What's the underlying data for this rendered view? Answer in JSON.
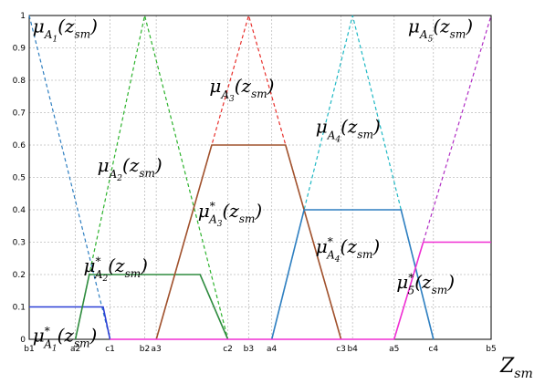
{
  "chart_data": {
    "type": "line",
    "title": "",
    "xlabel": "Z_sm",
    "ylabel": "",
    "xlim": [
      0,
      20
    ],
    "ylim": [
      0,
      1
    ],
    "grid": true,
    "x_tick_positions": [
      0,
      2,
      3.5,
      5,
      5.5,
      8.6,
      9.5,
      10.5,
      13.5,
      14,
      15.8,
      17.5,
      20
    ],
    "x_tick_labels": [
      "b1",
      "a2",
      "c1",
      "b2",
      "a3",
      "c2",
      "b3",
      "a4",
      "c3",
      "b4",
      "a5",
      "c4",
      "b5"
    ],
    "y_ticks": [
      0,
      0.1,
      0.2,
      0.3,
      0.4,
      0.5,
      0.6,
      0.7,
      0.8,
      0.9,
      1
    ],
    "y_tick_labels": [
      "0",
      "0.1",
      "0.2",
      "0.3",
      "0.4",
      "0.5",
      "0.6",
      "0.7",
      "0.8",
      "0.9",
      "1"
    ],
    "series": [
      {
        "key": "A1",
        "style": "dashed",
        "color": "#2f7fc1",
        "x": [
          0,
          3.5
        ],
        "y": [
          1,
          0
        ]
      },
      {
        "key": "A2",
        "style": "dashed",
        "color": "#2db32d",
        "x": [
          2,
          5,
          8.6
        ],
        "y": [
          0,
          1,
          0
        ]
      },
      {
        "key": "A3",
        "style": "dashed",
        "color": "#e8302c",
        "x": [
          5.5,
          9.5,
          13.5
        ],
        "y": [
          0,
          1,
          0
        ]
      },
      {
        "key": "A4",
        "style": "dashed",
        "color": "#1fb8c4",
        "x": [
          10.5,
          14,
          17.5
        ],
        "y": [
          0,
          1,
          0
        ]
      },
      {
        "key": "A5",
        "style": "dashed",
        "color": "#b12fc4",
        "x": [
          15.8,
          20
        ],
        "y": [
          0,
          1
        ]
      },
      {
        "key": "A1*",
        "style": "solid",
        "color": "#2b3fd6",
        "x": [
          0,
          3.2,
          3.5
        ],
        "y": [
          0.1,
          0.1,
          0
        ]
      },
      {
        "key": "A2*",
        "style": "solid",
        "color": "#2e8b3e",
        "x": [
          2,
          2.6,
          7.4,
          8.6
        ],
        "y": [
          0,
          0.2,
          0.2,
          0
        ]
      },
      {
        "key": "A3*",
        "style": "solid",
        "color": "#a0522d",
        "x": [
          5.5,
          7.9,
          11.1,
          13.5
        ],
        "y": [
          0,
          0.6,
          0.6,
          0
        ]
      },
      {
        "key": "A4*",
        "style": "solid",
        "color": "#2f7fc1",
        "x": [
          10.5,
          11.9,
          16.1,
          17.5
        ],
        "y": [
          0,
          0.4,
          0.4,
          0
        ]
      },
      {
        "key": "A5*",
        "style": "solid",
        "color": "#f02fd3",
        "x": [
          15.8,
          17.06,
          20
        ],
        "y": [
          0,
          0.3,
          0.3
        ]
      },
      {
        "key": "base",
        "style": "solid",
        "color": "#f02fd3",
        "x": [
          3.5,
          15.8
        ],
        "y": [
          0,
          0
        ]
      }
    ],
    "annotations": [
      {
        "key": "A1",
        "base": "μ",
        "sub": "A",
        "subsub": "1",
        "sup": "",
        "arg": "(z",
        "argsub": "sm",
        "close": ")",
        "x": 0.15,
        "y": 0.965,
        "size": 20
      },
      {
        "key": "A5",
        "base": "μ",
        "sub": "A",
        "subsub": "5",
        "sup": "",
        "arg": "(z",
        "argsub": "sm",
        "close": ")",
        "x": 16.4,
        "y": 0.965,
        "size": 20
      },
      {
        "key": "A3",
        "base": "μ",
        "sub": "A",
        "subsub": "3",
        "sup": "",
        "arg": "(z",
        "argsub": "sm",
        "close": ")",
        "x": 7.8,
        "y": 0.78,
        "size": 20
      },
      {
        "key": "A4",
        "base": "μ",
        "sub": "A",
        "subsub": "4",
        "sup": "",
        "arg": "(z",
        "argsub": "sm",
        "close": ")",
        "x": 12.4,
        "y": 0.655,
        "size": 20
      },
      {
        "key": "A2",
        "base": "μ",
        "sub": "A",
        "subsub": "2",
        "sup": "",
        "arg": "(z",
        "argsub": "sm",
        "close": ")",
        "x": 2.95,
        "y": 0.535,
        "size": 20
      },
      {
        "key": "A3*",
        "base": "μ",
        "sub": "A",
        "subsub": "3",
        "sup": "*",
        "arg": "(z",
        "argsub": "sm",
        "close": ")",
        "x": 7.3,
        "y": 0.395,
        "size": 20
      },
      {
        "key": "A4*",
        "base": "μ",
        "sub": "A",
        "subsub": "4",
        "sup": "*",
        "arg": "(z",
        "argsub": "sm",
        "close": ")",
        "x": 12.4,
        "y": 0.285,
        "size": 20
      },
      {
        "key": "A2*",
        "base": "μ",
        "sub": "A",
        "subsub": "2",
        "sup": "*",
        "arg": "(z",
        "argsub": "sm",
        "close": ")",
        "x": 2.35,
        "y": 0.225,
        "size": 20
      },
      {
        "key": "A5*",
        "base": "μ",
        "sub": "",
        "subsub": "",
        "sup": "*",
        "supsub": "5",
        "arg": "(z",
        "argsub": "sm",
        "close": ")",
        "x": 15.9,
        "y": 0.175,
        "size": 20
      },
      {
        "key": "A1*",
        "base": "μ",
        "sub": "A",
        "subsub": "1",
        "sup": "*",
        "arg": "(z",
        "argsub": "sm",
        "close": ")",
        "x": 0.15,
        "y": 0.01,
        "size": 20
      }
    ],
    "axis_label": {
      "base": "Z",
      "sub": "sm"
    }
  }
}
